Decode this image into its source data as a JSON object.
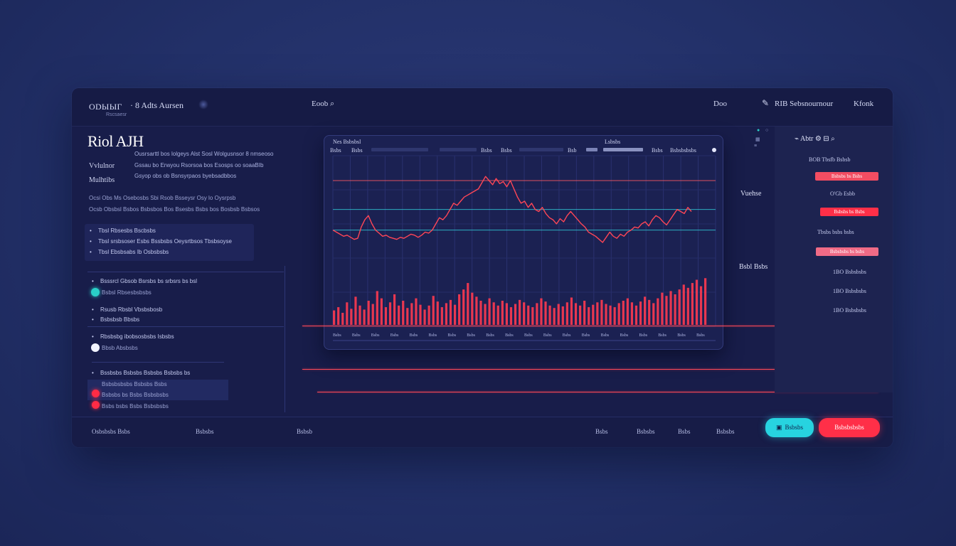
{
  "topbar": {
    "logo": "ODЫЫГ",
    "logo_sub": "Rscsaesr",
    "title": "· 8 Adts Aursen",
    "nav": "Eoob ⌕",
    "user": "Doo",
    "account": "RIB Sebsnournour",
    "menu": "Kfonk"
  },
  "left": {
    "title": "Riol AJH",
    "sub1": "Vvlulnor",
    "sub2": "Mulhtibs",
    "desc": [
      "Ousrsarttl bos lolgeys Alst Sosl Wolgusnsor 8 nmseoso",
      "Gssau bo Erwyou Rsorsoa bos Esosps oo soaaBIb",
      "Gsyop obs ob Bsnsyrpaos byebsadbbos"
    ],
    "lines": [
      "Ocsi Obs Ms Osebosbs Sbi Rsob Bsseysr Osy lo Oysrpsb",
      "Ocsb Obsbsl Bsbos Bsbsbos Bos Bsesbs Bsbs bos Bosbsb Bsbsos"
    ],
    "box_bullets": [
      "Tbsl Rbsesbs Bscbsbs",
      "Tbsl srsbsoser Esbs Bssbsbs Oeysrtbsos Tbsbsoyse",
      "Tbsl Ebsbsabs Ib Osbsbsbs"
    ],
    "list1": [
      "Bsssrcl Gbsob Bsrsbs bs srbsrs bs bsl",
      "Bsbsl Rbsesbsbsbs"
    ],
    "list2": [
      "Rsusb Rbsbl Vbsbsbosb",
      "Bsbsbsb Bbsbs"
    ],
    "list3": [
      "Rbsbsbg ibobsosbsbs Isbsbs",
      "Bbsb Absbsbs"
    ],
    "list4": [
      "Bssbsbs Bsbsbs Bsbsbs Bsbsbs bs",
      "Bsbsbsbsbs Bsbsbs Bsbs",
      "Bsbsbs bs Bsbs Bsbsbsbs",
      "Bsbs bsbs Bsbs Bsbsbsbs"
    ],
    "dots": {
      "teal": "#2ad0c8",
      "white": "#f2f4ff",
      "red": "#ff2b45"
    }
  },
  "chart_card": {
    "head": [
      "Nes Bsbsbsl",
      "Lsbsbs",
      "Bsbs",
      "Bsbs",
      "Bsbs",
      "Bsbs",
      "Bsb",
      "Bsbsbsbsbs"
    ],
    "axis_ticks": [
      "Bsbs",
      "Bsbs",
      "Bsbs",
      "Bsbs",
      "Bsbs",
      "Bsbs",
      "Bsbs",
      "Bsbs",
      "Bsbs",
      "Bsbs",
      "Bsbs",
      "Bsbs",
      "Bsbs",
      "Bsbs",
      "Bsbs",
      "Bsbs",
      "Bsbs",
      "Bsbs",
      "Bsbs",
      "Bsbs"
    ]
  },
  "chart_data": {
    "type": "line",
    "series": [
      {
        "values": [
          52,
          50,
          48,
          46,
          47,
          45,
          43,
          44,
          55,
          62,
          66,
          58,
          52,
          49,
          46,
          47,
          45,
          44,
          43,
          45,
          44,
          46,
          48,
          47,
          45,
          47,
          50,
          49,
          52,
          58,
          64,
          62,
          66,
          72,
          78,
          76,
          80,
          84,
          86,
          88,
          90,
          92,
          98,
          104,
          100,
          96,
          102,
          97,
          99,
          94,
          100,
          92,
          84,
          78,
          80,
          74,
          78,
          72,
          70,
          74,
          68,
          64,
          62,
          58,
          63,
          60,
          66,
          70,
          66,
          62,
          58,
          55,
          50,
          48,
          46,
          43,
          40,
          45,
          50,
          46,
          44,
          48,
          46,
          50,
          52,
          55,
          54,
          58,
          60,
          56,
          62,
          66,
          64,
          60,
          57,
          62,
          67,
          72,
          70,
          68,
          74,
          70
        ]
      },
      {
        "values": [
          18,
          22,
          15,
          28,
          20,
          35,
          24,
          19,
          30,
          26,
          42,
          33,
          22,
          28,
          38,
          24,
          30,
          21,
          27,
          33,
          25,
          19,
          24,
          36,
          29,
          22,
          27,
          31,
          25,
          38,
          44,
          52,
          40,
          35,
          30,
          26,
          33,
          28,
          24,
          30,
          27,
          22,
          26,
          31,
          28,
          24,
          22,
          27,
          33,
          29,
          24,
          21,
          26,
          23,
          28,
          34,
          27,
          24,
          30,
          22,
          25,
          28,
          31,
          26,
          24,
          22,
          27,
          30,
          33,
          28,
          24,
          29,
          35,
          31,
          27,
          33,
          40,
          36,
          42,
          38,
          44,
          50,
          46,
          52,
          56,
          48,
          58
        ]
      }
    ],
    "ylim": [
      0,
      120
    ],
    "reference_lines": [
      100,
      72,
      52
    ],
    "colors": {
      "price": "#ff4656",
      "volume": "#ff3a50",
      "ref_top": "#ff5a63",
      "ref_mid": "#31c6d4"
    }
  },
  "right": {
    "head": "Abtr",
    "items": [
      "BOB Tbsfb Bsbsb",
      "O'Gb Esbb",
      "Tbsbs bsbs bsbs",
      "1BO Bsbsbsbs",
      "1BO Bsbsbsbs",
      "1BO Bsbsbsbs"
    ],
    "badges": [
      "Bsbsbs bs Bsbs",
      "Bsbsbs bs Bsbs",
      "Bsbsbsbs bs bsbs"
    ],
    "side_labels": [
      "Vuehse",
      "Bsbl Bsbs"
    ],
    "colors": {
      "badge": "#f34d62",
      "badge_strong": "#ff2f48",
      "badge_pink": "#f06b86"
    }
  },
  "bottombar": {
    "left": "Osbsbsbs Bsbs",
    "mid1": "Bsbsbs",
    "mid2": "Bsbsb",
    "stats": [
      "Bsbs",
      "Bsbsbs",
      "Bsbs",
      "Bsbsbs"
    ],
    "primary_button": "Bsbsbs",
    "danger_button": "Bsbsbsbsbs",
    "colors": {
      "teal": "#27d3e0",
      "red": "#ff2f48"
    }
  }
}
